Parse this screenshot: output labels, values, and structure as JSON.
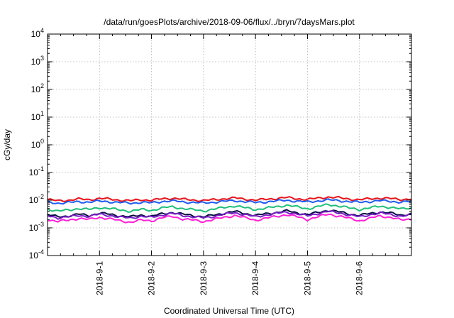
{
  "chart_data": {
    "type": "line",
    "title": "/data/run/goesPlots/archive/2018-09-06/flux/../bryn/7daysMars.plot",
    "xlabel": "Coordinated Universal Time (UTC)",
    "ylabel": "cGy/day",
    "yscale": "log",
    "ylim": [
      0.0001,
      10000
    ],
    "y_ticks": [
      {
        "value": 0.0001,
        "base": "10",
        "exp": "-4"
      },
      {
        "value": 0.001,
        "base": "10",
        "exp": "-3"
      },
      {
        "value": 0.01,
        "base": "10",
        "exp": "-2"
      },
      {
        "value": 0.1,
        "base": "10",
        "exp": "-1"
      },
      {
        "value": 1,
        "base": "10",
        "exp": "0"
      },
      {
        "value": 10,
        "base": "10",
        "exp": "1"
      },
      {
        "value": 100,
        "base": "10",
        "exp": "2"
      },
      {
        "value": 1000,
        "base": "10",
        "exp": "3"
      },
      {
        "value": 10000,
        "base": "10",
        "exp": "4"
      }
    ],
    "xlim": [
      "2018-08-31 00:00",
      "2018-09-07 00:00"
    ],
    "x_ticks": [
      "2018-9-1",
      "2018-9-2",
      "2018-9-3",
      "2018-9-4",
      "2018-9-5",
      "2018-9-6"
    ],
    "x_tick_days": [
      1,
      2,
      3,
      4,
      5,
      6
    ],
    "grid": true,
    "legend": "none",
    "series": [
      {
        "color": "#e8141b",
        "values": [
          0.0105,
          0.0095,
          0.01,
          0.011,
          0.0105,
          0.0115,
          0.011,
          0.01,
          0.0095,
          0.0105,
          0.0098,
          0.0112,
          0.0118,
          0.0108,
          0.0102,
          0.0096,
          0.0104,
          0.0113,
          0.012,
          0.011,
          0.01,
          0.0108,
          0.0116,
          0.0124,
          0.0114,
          0.0106,
          0.0118,
          0.013,
          0.0122,
          0.011,
          0.0104,
          0.0112,
          0.012,
          0.0114,
          0.0106,
          0.0112
        ]
      },
      {
        "color": "#1f5cf0",
        "values": [
          0.0085,
          0.0078,
          0.0082,
          0.0088,
          0.0086,
          0.0092,
          0.0088,
          0.0082,
          0.0078,
          0.0084,
          0.008,
          0.009,
          0.0094,
          0.0087,
          0.0083,
          0.0079,
          0.0085,
          0.0091,
          0.0096,
          0.0089,
          0.0082,
          0.0087,
          0.0093,
          0.0099,
          0.0092,
          0.0086,
          0.0094,
          0.0102,
          0.0097,
          0.0089,
          0.0084,
          0.009,
          0.0096,
          0.0091,
          0.0085,
          0.0089
        ]
      },
      {
        "color": "#1fbf7a",
        "values": [
          0.0048,
          0.004,
          0.0044,
          0.005,
          0.0046,
          0.0054,
          0.005,
          0.0044,
          0.004,
          0.0046,
          0.0043,
          0.0052,
          0.0058,
          0.005,
          0.0045,
          0.0041,
          0.0047,
          0.0055,
          0.0062,
          0.0053,
          0.0046,
          0.0051,
          0.0058,
          0.0066,
          0.0057,
          0.0049,
          0.0058,
          0.007,
          0.0062,
          0.0052,
          0.0046,
          0.0053,
          0.006,
          0.0055,
          0.0048,
          0.0053
        ]
      },
      {
        "color": "#0b0b45",
        "values": [
          0.003,
          0.0025,
          0.0027,
          0.0031,
          0.0028,
          0.0034,
          0.0031,
          0.0027,
          0.0025,
          0.0029,
          0.0026,
          0.0032,
          0.0036,
          0.0031,
          0.0028,
          0.0025,
          0.0029,
          0.0034,
          0.0039,
          0.0033,
          0.0028,
          0.0032,
          0.0036,
          0.0041,
          0.0035,
          0.003,
          0.0036,
          0.0043,
          0.0038,
          0.0032,
          0.0028,
          0.0033,
          0.0037,
          0.0034,
          0.0029,
          0.0032
        ]
      },
      {
        "color": "#7a1ec8",
        "values": [
          0.0027,
          0.0023,
          0.0025,
          0.0028,
          0.0026,
          0.0031,
          0.0028,
          0.0024,
          0.0023,
          0.0026,
          0.0024,
          0.0029,
          0.0033,
          0.0028,
          0.0025,
          0.0023,
          0.0026,
          0.0031,
          0.0035,
          0.003,
          0.0025,
          0.0029,
          0.0033,
          0.0037,
          0.0032,
          0.0027,
          0.0033,
          0.0039,
          0.0035,
          0.0029,
          0.0025,
          0.003,
          0.0034,
          0.0031,
          0.0026,
          0.0029
        ]
      },
      {
        "color": "#ff1fd6",
        "values": [
          0.002,
          0.0017,
          0.0019,
          0.0022,
          0.002,
          0.0024,
          0.0021,
          0.0018,
          0.0016,
          0.0019,
          0.0018,
          0.0023,
          0.0026,
          0.0021,
          0.0019,
          0.0017,
          0.002,
          0.0024,
          0.0028,
          0.0023,
          0.0019,
          0.0022,
          0.0026,
          0.003,
          0.0025,
          0.002,
          0.0025,
          0.0031,
          0.0027,
          0.0022,
          0.0018,
          0.0022,
          0.0027,
          0.0024,
          0.0019,
          0.0021
        ]
      }
    ]
  }
}
